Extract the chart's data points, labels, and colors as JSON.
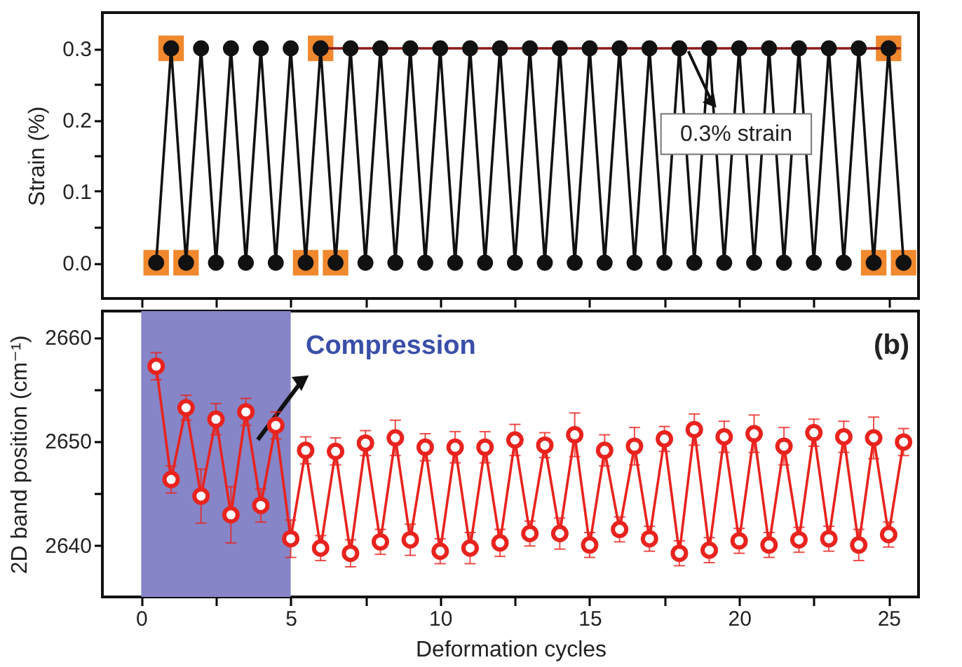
{
  "chart_data": [
    {
      "type": "line",
      "ylabel": "Strain (%)",
      "xlim": [
        -1.3,
        26
      ],
      "ylim": [
        -0.05,
        0.35
      ],
      "xticks": [
        0,
        {
          "value": 2.5,
          "label": null
        },
        5,
        {
          "value": 7.5,
          "label": null
        },
        10,
        {
          "value": 12.5,
          "label": null
        },
        15,
        {
          "value": 17.5,
          "label": null
        },
        20,
        {
          "value": 22.5,
          "label": null
        },
        25
      ],
      "yticks": [
        {
          "value": 0,
          "label": "0.0"
        },
        {
          "value": 0.05,
          "label": null
        },
        {
          "value": 0.1,
          "label": "0.1"
        },
        {
          "value": 0.15,
          "label": null
        },
        {
          "value": 0.2,
          "label": "0.2"
        },
        {
          "value": 0.25,
          "label": null
        },
        {
          "value": 0.3,
          "label": "0.3"
        }
      ],
      "tick_labels": "y",
      "grid": false,
      "annotations": [
        {
          "text": "0.3% strain",
          "x": 18.3,
          "y": 0.3
        }
      ],
      "series": [
        {
          "type": "scatter",
          "marker": "square",
          "color": "#f0882e",
          "x": [
            0.5,
            1,
            1.5,
            5.5,
            6,
            6.5,
            24.5,
            25,
            25.5
          ],
          "values": [
            0,
            0.3,
            0,
            0,
            0.3,
            0,
            0,
            0.3,
            0
          ]
        },
        {
          "marker": "circle",
          "color": "#111111",
          "x": [
            0.5,
            1,
            1.5,
            2,
            2.5,
            3,
            3.5,
            4,
            4.5,
            5,
            5.5,
            6,
            6.5,
            7,
            7.5,
            8,
            8.5,
            9,
            9.5,
            10,
            10.5,
            11,
            11.5,
            12,
            12.5,
            13,
            13.5,
            14,
            14.5,
            15,
            15.5,
            16,
            16.5,
            17,
            17.5,
            18,
            18.5,
            19,
            19.5,
            20,
            20.5,
            21,
            21.5,
            22,
            22.5,
            23,
            23.5,
            24,
            24.5,
            25,
            25.5
          ],
          "values": [
            0,
            0.3,
            0,
            0.3,
            0,
            0.3,
            0,
            0.3,
            0,
            0.3,
            0,
            0.3,
            0,
            0.3,
            0,
            0.3,
            0,
            0.3,
            0,
            0.3,
            0,
            0.3,
            0,
            0.3,
            0,
            0.3,
            0,
            0.3,
            0,
            0.3,
            0,
            0.3,
            0,
            0.3,
            0,
            0.3,
            0,
            0.3,
            0,
            0.3,
            0,
            0.3,
            0,
            0.3,
            0,
            0.3,
            0,
            0.3,
            0,
            0.3,
            0
          ]
        },
        {
          "marker": "none",
          "color": "#8b1a1a",
          "x": [
            6,
            25.4
          ],
          "values": [
            0.3,
            0.3
          ]
        }
      ]
    },
    {
      "type": "line",
      "ylabel": "2D band position (cm⁻¹)",
      "xlabel": "Deformation cycles",
      "xlim": [
        -1.3,
        26
      ],
      "ylim": [
        2635,
        2662.5
      ],
      "xticks": [
        0,
        {
          "value": 2.5,
          "label": null
        },
        5,
        {
          "value": 7.5,
          "label": null
        },
        10,
        {
          "value": 12.5,
          "label": null
        },
        15,
        {
          "value": 17.5,
          "label": null
        },
        20,
        {
          "value": 22.5,
          "label": null
        },
        25
      ],
      "yticks": [
        2640,
        {
          "value": 2645,
          "label": null
        },
        2650,
        {
          "value": 2655,
          "label": null
        },
        2660
      ],
      "grid": false,
      "annotations": [
        "(b)"
      ],
      "bands": [
        {
          "axis": "x",
          "from": 0,
          "to": 5,
          "label": "Compression",
          "color": "#8585c8"
        }
      ],
      "series": [
        {
          "marker": "circle",
          "color": "#e8231e",
          "x": [
            0.5,
            1,
            1.5,
            2,
            2.5,
            3,
            3.5,
            4,
            4.5,
            5,
            5.5,
            6,
            6.5,
            7,
            7.5,
            8,
            8.5,
            9,
            9.5,
            10,
            10.5,
            11,
            11.5,
            12,
            12.5,
            13,
            13.5,
            14,
            14.5,
            15,
            15.5,
            16,
            16.5,
            17,
            17.5,
            18,
            18.5,
            19,
            19.5,
            20,
            20.5,
            21,
            21.5,
            22,
            22.5,
            23,
            23.5,
            24,
            24.5,
            25,
            25.5
          ],
          "values": [
            2657.2,
            2646.3,
            2653.2,
            2644.7,
            2652.1,
            2642.9,
            2652.8,
            2643.8,
            2651.5,
            2640.6,
            2649.1,
            2639.7,
            2649.0,
            2639.2,
            2649.8,
            2640.3,
            2650.3,
            2640.5,
            2649.4,
            2639.4,
            2649.4,
            2639.7,
            2649.4,
            2640.2,
            2650.1,
            2641.1,
            2649.6,
            2641.1,
            2650.6,
            2640.0,
            2649.1,
            2641.5,
            2649.5,
            2640.6,
            2650.2,
            2639.2,
            2651.1,
            2639.5,
            2650.4,
            2640.4,
            2650.7,
            2640.0,
            2649.5,
            2640.5,
            2650.8,
            2640.6,
            2650.4,
            2640.0,
            2650.3,
            2641.0,
            2649.9
          ],
          "errors": [
            1.3,
            1.3,
            1.2,
            2.6,
            1.5,
            2.7,
            1.3,
            1.6,
            1.3,
            1.8,
            1.3,
            1.2,
            1.3,
            1.3,
            1.2,
            1.2,
            1.7,
            1.5,
            1.3,
            1.2,
            1.5,
            1.5,
            1.5,
            1.3,
            1.5,
            1.2,
            1.2,
            1.5,
            2.1,
            1.2,
            1.5,
            1.2,
            1.8,
            1.2,
            1.2,
            1.2,
            1.5,
            1.2,
            1.5,
            1.2,
            1.8,
            1.2,
            1.8,
            1.2,
            1.3,
            1.2,
            1.5,
            1.5,
            2.0,
            1.2,
            1.3
          ]
        }
      ]
    }
  ]
}
